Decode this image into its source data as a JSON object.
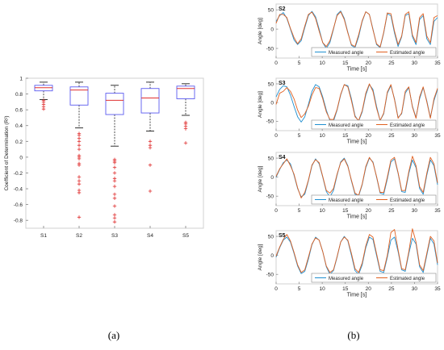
{
  "panel_labels": {
    "a": "(a)",
    "b": "(b)"
  },
  "chart_data": [
    {
      "type": "box",
      "ylabel": "Coefficient of Determination (R²)",
      "ylim": [
        -0.9,
        1.0
      ],
      "yticks": [
        -0.8,
        -0.6,
        -0.4,
        -0.2,
        0,
        0.2,
        0.4,
        0.6,
        0.8,
        1
      ],
      "categories": [
        "S1",
        "S2",
        "S3",
        "S4",
        "S5"
      ],
      "colors": {
        "box": "#5b5bf0",
        "median": "#e03030",
        "whisker": "#000000",
        "outlier": "#e03030"
      },
      "boxes": [
        {
          "q1": 0.84,
          "median": 0.88,
          "q3": 0.91,
          "whisker_low": 0.73,
          "whisker_high": 0.95,
          "outliers": [
            0.72,
            0.7,
            0.67,
            0.64,
            0.61
          ]
        },
        {
          "q1": 0.66,
          "median": 0.85,
          "q3": 0.89,
          "whisker_low": 0.37,
          "whisker_high": 0.95,
          "outliers": [
            0.3,
            0.28,
            0.24,
            0.2,
            0.15,
            0.1,
            0.02,
            0.0,
            -0.02,
            -0.08,
            -0.1,
            -0.25,
            -0.3,
            -0.34,
            -0.42,
            -0.45,
            -0.76
          ]
        },
        {
          "q1": 0.54,
          "median": 0.72,
          "q3": 0.81,
          "whisker_low": 0.14,
          "whisker_high": 0.91,
          "outliers": [
            -0.03,
            -0.05,
            -0.07,
            -0.13,
            -0.2,
            -0.27,
            -0.3,
            -0.37,
            -0.47,
            -0.52,
            -0.62,
            -0.73,
            -0.77,
            -0.82
          ]
        },
        {
          "q1": 0.56,
          "median": 0.75,
          "q3": 0.87,
          "whisker_low": 0.33,
          "whisker_high": 0.95,
          "outliers": [
            0.2,
            0.15,
            0.12,
            -0.1,
            -0.43
          ]
        },
        {
          "q1": 0.74,
          "median": 0.87,
          "q3": 0.9,
          "whisker_low": 0.53,
          "whisker_high": 0.93,
          "outliers": [
            0.44,
            0.42,
            0.39,
            0.36,
            0.18
          ]
        }
      ]
    },
    {
      "type": "line",
      "title": "S2",
      "xlabel": "Time [s]",
      "ylabel": "Angle [deg]",
      "xlim": [
        0,
        35
      ],
      "ylim": [
        -75,
        65
      ],
      "xticks": [
        0,
        5,
        10,
        15,
        20,
        25,
        30,
        35
      ],
      "yticks": [
        -50,
        0,
        50
      ],
      "legend": "bottom-right",
      "series": [
        {
          "name": "Measured angle",
          "color": "#1f8fd0",
          "values": [
            20,
            35,
            43,
            28,
            0,
            -28,
            -40,
            -30,
            4,
            35,
            46,
            32,
            0,
            -35,
            -50,
            -35,
            0,
            38,
            47,
            28,
            -8,
            -42,
            -48,
            -20,
            20,
            45,
            38,
            0,
            -40,
            -48,
            -10,
            40,
            35,
            -10,
            -45,
            -20,
            35,
            40,
            -20,
            -40,
            25,
            35,
            -25,
            -40,
            20,
            30
          ]
        },
        {
          "name": "Estimated angle",
          "color": "#e06020",
          "values": [
            15,
            38,
            38,
            30,
            2,
            -22,
            -38,
            -25,
            8,
            38,
            44,
            28,
            -5,
            -35,
            -45,
            -30,
            2,
            35,
            45,
            25,
            -10,
            -40,
            -45,
            -15,
            22,
            45,
            38,
            -2,
            -38,
            -46,
            -8,
            42,
            40,
            -5,
            -40,
            -18,
            38,
            45,
            -15,
            -35,
            30,
            40,
            -18,
            -35,
            30,
            35
          ]
        }
      ]
    },
    {
      "type": "line",
      "title": "S3",
      "xlabel": "Time [s]",
      "ylabel": "Angle [deg]",
      "xlim": [
        0,
        35
      ],
      "ylim": [
        -75,
        65
      ],
      "xticks": [
        0,
        5,
        10,
        15,
        20,
        25,
        30,
        35
      ],
      "yticks": [
        -50,
        0,
        50
      ],
      "legend": "bottom-right",
      "series": [
        {
          "name": "Measured angle",
          "color": "#1f8fd0",
          "values": [
            15,
            35,
            45,
            42,
            20,
            -10,
            -38,
            -52,
            -38,
            -5,
            30,
            48,
            42,
            15,
            -20,
            -48,
            -50,
            -20,
            20,
            48,
            45,
            10,
            -35,
            -50,
            -25,
            20,
            48,
            35,
            -10,
            -48,
            -30,
            25,
            45,
            10,
            -40,
            -30,
            25,
            40,
            -10,
            -40,
            10,
            40,
            5,
            -40,
            5,
            35
          ]
        },
        {
          "name": "Estimated angle",
          "color": "#e06020",
          "values": [
            -5,
            25,
            30,
            40,
            30,
            10,
            -20,
            -40,
            -30,
            -10,
            20,
            40,
            38,
            10,
            -25,
            -45,
            -45,
            -18,
            22,
            48,
            42,
            5,
            -38,
            -48,
            -22,
            25,
            50,
            30,
            -15,
            -48,
            -28,
            28,
            48,
            8,
            -42,
            -28,
            30,
            42,
            -12,
            -42,
            15,
            42,
            2,
            -42,
            10,
            38
          ]
        }
      ]
    },
    {
      "type": "line",
      "title": "S4",
      "xlabel": "Time [s]",
      "ylabel": "Angle [deg]",
      "xlim": [
        0,
        35
      ],
      "ylim": [
        -75,
        65
      ],
      "xticks": [
        0,
        5,
        10,
        15,
        20,
        25,
        30,
        35
      ],
      "yticks": [
        -50,
        0,
        50
      ],
      "legend": "bottom-right",
      "series": [
        {
          "name": "Measured angle",
          "color": "#1f8fd0",
          "values": [
            0,
            20,
            38,
            45,
            35,
            5,
            -30,
            -52,
            -45,
            -10,
            30,
            48,
            35,
            0,
            -38,
            -52,
            -35,
            5,
            40,
            50,
            30,
            -10,
            -45,
            -50,
            -20,
            25,
            50,
            40,
            0,
            -42,
            -45,
            -5,
            40,
            48,
            10,
            -38,
            -40,
            10,
            45,
            25,
            -30,
            -45,
            5,
            45,
            30,
            -20
          ]
        },
        {
          "name": "Estimated angle",
          "color": "#e06020",
          "values": [
            2,
            22,
            35,
            48,
            30,
            8,
            -28,
            -55,
            -40,
            -8,
            32,
            46,
            38,
            2,
            -35,
            -42,
            -30,
            8,
            38,
            48,
            28,
            -8,
            -42,
            -48,
            -18,
            28,
            52,
            38,
            2,
            -40,
            -40,
            0,
            45,
            52,
            12,
            -35,
            -35,
            15,
            55,
            30,
            -25,
            -40,
            10,
            52,
            35,
            -15
          ]
        }
      ]
    },
    {
      "type": "line",
      "title": "S5",
      "xlabel": "Time [s]",
      "ylabel": "Angle [deg]",
      "xlim": [
        0,
        35
      ],
      "ylim": [
        -75,
        65
      ],
      "xticks": [
        0,
        5,
        10,
        15,
        20,
        25,
        30,
        35
      ],
      "yticks": [
        -50,
        0,
        50
      ],
      "legend": "bottom-right",
      "series": [
        {
          "name": "Measured angle",
          "color": "#1f8fd0",
          "values": [
            -5,
            20,
            40,
            48,
            35,
            5,
            -28,
            -48,
            -42,
            -10,
            28,
            48,
            40,
            10,
            -30,
            -50,
            -40,
            -5,
            35,
            50,
            38,
            0,
            -40,
            -50,
            -25,
            20,
            48,
            42,
            0,
            -42,
            -45,
            -5,
            40,
            48,
            10,
            -38,
            -42,
            5,
            45,
            30,
            -30,
            -45,
            0,
            45,
            30,
            -25
          ]
        },
        {
          "name": "Estimated angle",
          "color": "#e06020",
          "values": [
            -2,
            22,
            42,
            55,
            38,
            8,
            -25,
            -45,
            -38,
            -5,
            30,
            46,
            40,
            10,
            -28,
            -45,
            -38,
            -3,
            35,
            48,
            40,
            5,
            -35,
            -45,
            -20,
            25,
            55,
            48,
            5,
            -38,
            -40,
            0,
            60,
            68,
            15,
            -35,
            -38,
            10,
            70,
            35,
            -25,
            -40,
            5,
            50,
            38,
            -20
          ]
        }
      ]
    }
  ]
}
